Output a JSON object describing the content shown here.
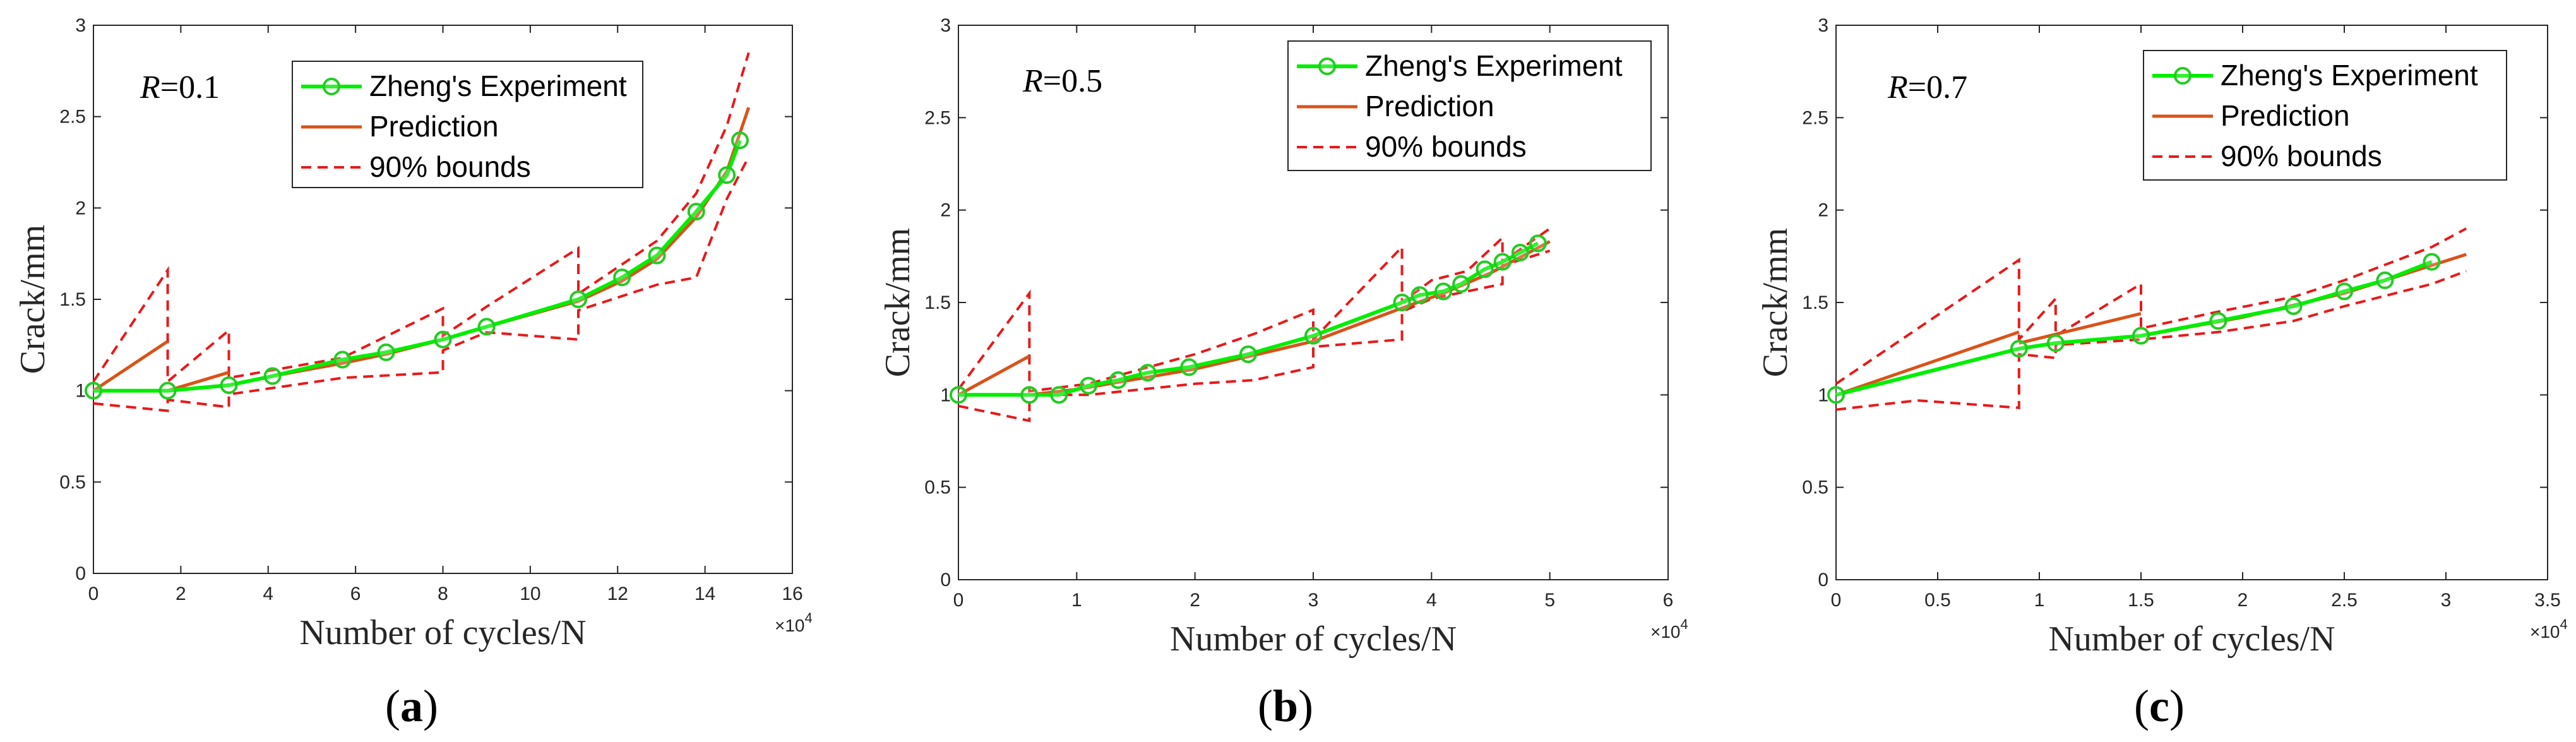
{
  "colors": {
    "experiment": "#00ee00",
    "experiment_marker": "#22cc22",
    "prediction": "#d95319",
    "bounds": "#e8191b",
    "axis": "#262626"
  },
  "legend": {
    "experiment": "Zheng's Experiment",
    "prediction": "Prediction",
    "bounds": "90% bounds"
  },
  "chart_data": [
    {
      "panel": "a",
      "type": "line",
      "panel_label_text": "a",
      "r_label": "R",
      "r_value": "=0.1",
      "xlabel": "Number of cycles/N",
      "ylabel": "Crack/mm",
      "x_exponent": "4",
      "xlim": [
        0,
        16
      ],
      "ylim": [
        0,
        3
      ],
      "xticks": [
        "0",
        "2",
        "4",
        "6",
        "8",
        "10",
        "12",
        "14",
        "16"
      ],
      "yticks": [
        "0",
        "0.5",
        "1",
        "1.5",
        "2",
        "2.5",
        "3"
      ],
      "experiment": {
        "x": [
          0,
          1.7,
          3.1,
          4.1,
          5.7,
          6.7,
          8,
          9,
          11.1,
          12.1,
          12.9,
          13.8,
          14.5,
          14.8
        ],
        "y": [
          1.0,
          1.0,
          1.03,
          1.08,
          1.17,
          1.21,
          1.28,
          1.35,
          1.5,
          1.62,
          1.74,
          1.98,
          2.18,
          2.37
        ]
      },
      "prediction": [
        {
          "x": [
            0,
            1.7
          ],
          "y": [
            1.0,
            1.27
          ]
        },
        {
          "x": [
            1.7,
            3.1
          ],
          "y": [
            1.0,
            1.1
          ]
        },
        {
          "x": [
            3.1,
            4.1,
            5.7,
            6.7,
            8,
            9,
            11.1,
            12.1,
            12.9,
            13.8,
            14.5,
            15.0
          ],
          "y": [
            1.03,
            1.08,
            1.15,
            1.2,
            1.28,
            1.35,
            1.49,
            1.6,
            1.72,
            1.95,
            2.2,
            2.55
          ]
        }
      ],
      "bounds_upper": {
        "x": [
          0,
          1.7,
          1.7,
          3.1,
          3.1,
          5.7,
          8,
          8,
          9,
          11.1,
          11.1,
          12.9,
          13.8,
          14.5,
          15.0
        ],
        "y": [
          1.05,
          1.66,
          1.05,
          1.33,
          1.07,
          1.18,
          1.45,
          1.3,
          1.46,
          1.78,
          1.53,
          1.82,
          2.08,
          2.45,
          2.85
        ]
      },
      "bounds_lower": {
        "x": [
          0,
          1.7,
          1.7,
          3.1,
          3.1,
          5.7,
          8,
          8,
          9,
          11.1,
          11.1,
          12.9,
          13.8,
          14.5,
          15.0
        ],
        "y": [
          0.93,
          0.89,
          0.95,
          0.91,
          0.98,
          1.07,
          1.1,
          1.22,
          1.32,
          1.28,
          1.44,
          1.58,
          1.62,
          2.05,
          2.28
        ]
      }
    },
    {
      "panel": "b",
      "type": "line",
      "panel_label_text": "b",
      "r_label": "R",
      "r_value": "=0.5",
      "xlabel": "Number of cycles/N",
      "ylabel": "Crack/mm",
      "x_exponent": "4",
      "xlim": [
        0,
        6
      ],
      "ylim": [
        0,
        3
      ],
      "xticks": [
        "0",
        "1",
        "2",
        "3",
        "4",
        "5",
        "6"
      ],
      "yticks": [
        "0",
        "0.5",
        "1",
        "1.5",
        "2",
        "2.5",
        "3"
      ],
      "experiment": {
        "x": [
          0,
          0.6,
          0.85,
          1.1,
          1.35,
          1.6,
          1.95,
          2.45,
          3.0,
          3.75,
          3.9,
          4.1,
          4.25,
          4.45,
          4.6,
          4.75,
          4.9
        ],
        "y": [
          1.0,
          1.0,
          1.0,
          1.05,
          1.08,
          1.12,
          1.15,
          1.22,
          1.32,
          1.5,
          1.54,
          1.56,
          1.6,
          1.68,
          1.72,
          1.77,
          1.82
        ]
      },
      "prediction": [
        {
          "x": [
            0,
            0.6
          ],
          "y": [
            1.0,
            1.21
          ]
        },
        {
          "x": [
            0.6,
            1.0,
            2.0,
            3.0,
            3.75,
            4.1,
            4.5,
            5.0
          ],
          "y": [
            1.0,
            1.03,
            1.14,
            1.29,
            1.47,
            1.55,
            1.66,
            1.83
          ]
        }
      ],
      "bounds_upper": {
        "x": [
          0,
          0.6,
          0.6,
          1.1,
          2.0,
          2.5,
          3.0,
          3.0,
          3.75,
          3.75,
          4.0,
          4.3,
          4.6,
          4.6,
          5.0
        ],
        "y": [
          1.03,
          1.55,
          1.02,
          1.06,
          1.22,
          1.33,
          1.46,
          1.3,
          1.8,
          1.5,
          1.62,
          1.67,
          1.85,
          1.72,
          1.9
        ]
      },
      "bounds_lower": {
        "x": [
          0,
          0.6,
          0.6,
          1.1,
          2.0,
          2.5,
          3.0,
          3.0,
          3.75,
          3.75,
          4.0,
          4.3,
          4.6,
          4.6,
          5.0
        ],
        "y": [
          0.94,
          0.86,
          1.0,
          1.0,
          1.06,
          1.08,
          1.15,
          1.26,
          1.3,
          1.45,
          1.52,
          1.56,
          1.6,
          1.7,
          1.78
        ]
      }
    },
    {
      "panel": "c",
      "type": "line",
      "panel_label_text": "c",
      "r_label": "R",
      "r_value": "=0.7",
      "xlabel": "Number of cycles/N",
      "ylabel": "Crack/mm",
      "x_exponent": "4",
      "xlim": [
        0,
        3.5
      ],
      "ylim": [
        0,
        3
      ],
      "xticks": [
        "0",
        "0.5",
        "1",
        "1.5",
        "2",
        "2.5",
        "3",
        "3.5"
      ],
      "yticks": [
        "0",
        "0.5",
        "1",
        "1.5",
        "2",
        "2.5",
        "3"
      ],
      "experiment": {
        "x": [
          0,
          0.9,
          1.08,
          1.5,
          1.88,
          2.25,
          2.5,
          2.7,
          2.93
        ],
        "y": [
          1.0,
          1.25,
          1.28,
          1.32,
          1.4,
          1.48,
          1.56,
          1.62,
          1.72
        ]
      },
      "prediction": [
        {
          "x": [
            0,
            0.9
          ],
          "y": [
            1.0,
            1.34
          ]
        },
        {
          "x": [
            0.9,
            1.5
          ],
          "y": [
            1.28,
            1.44
          ]
        },
        {
          "x": [
            1.5,
            2.0,
            2.5,
            3.1
          ],
          "y": [
            1.32,
            1.42,
            1.55,
            1.76
          ]
        }
      ],
      "bounds_upper": {
        "x": [
          0,
          0.9,
          0.9,
          1.08,
          1.08,
          1.5,
          1.5,
          1.88,
          2.25,
          2.5,
          2.93,
          3.1
        ],
        "y": [
          1.06,
          1.73,
          1.3,
          1.52,
          1.32,
          1.6,
          1.36,
          1.45,
          1.53,
          1.62,
          1.8,
          1.9
        ]
      },
      "bounds_lower": {
        "x": [
          0,
          0.4,
          0.9,
          0.9,
          1.08,
          1.08,
          1.5,
          1.88,
          2.25,
          2.5,
          2.93,
          3.1
        ],
        "y": [
          0.92,
          0.97,
          0.93,
          1.22,
          1.2,
          1.27,
          1.3,
          1.34,
          1.4,
          1.48,
          1.6,
          1.67
        ]
      }
    }
  ]
}
